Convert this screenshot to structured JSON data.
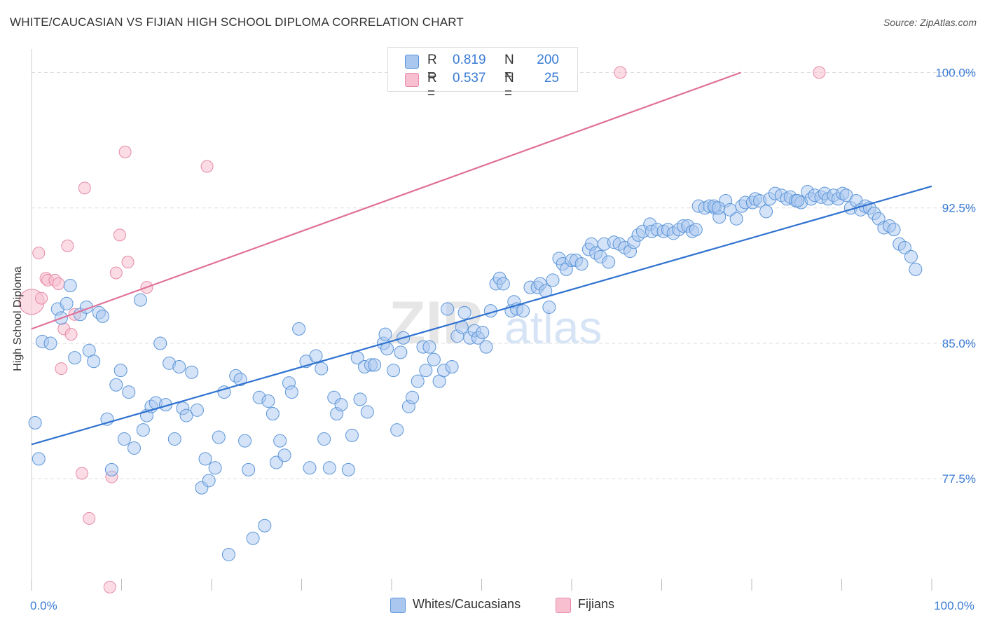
{
  "header": {
    "title": "WHITE/CAUCASIAN VS FIJIAN HIGH SCHOOL DIPLOMA CORRELATION CHART",
    "source": "Source: ZipAtlas.com"
  },
  "watermark": {
    "zip": "ZIP",
    "atlas": "atlas"
  },
  "legend_top": {
    "rows": [
      {
        "r_label": "R =",
        "r_value": "0.819",
        "n_label": "N =",
        "n_value": "200"
      },
      {
        "r_label": "R =",
        "r_value": "0.537",
        "n_label": "N =",
        "n_value": "25"
      }
    ]
  },
  "legend_bottom": {
    "items": [
      {
        "label": "Whites/Caucasians"
      },
      {
        "label": "Fijians"
      }
    ]
  },
  "colors": {
    "blue_fill": "#a9c7ef",
    "blue_stroke": "#5b95d9",
    "blue_line": "#2f72cf",
    "pink_fill": "#f7bfd0",
    "pink_stroke": "#e68aa8",
    "pink_line": "#e07098",
    "tick_label": "#3a7bd5",
    "grid": "#dddddd"
  },
  "chart_data": {
    "type": "scatter",
    "title": "WHITE/CAUCASIAN VS FIJIAN HIGH SCHOOL DIPLOMA CORRELATION CHART",
    "xlabel": "",
    "ylabel": "High School Diploma",
    "xlim": [
      0,
      100
    ],
    "ylim": [
      71.3,
      101.3
    ],
    "x_tick_labels": [
      {
        "value": 0,
        "label": "0.0%"
      },
      {
        "value": 100,
        "label": "100.0%"
      }
    ],
    "y_ticks": [
      {
        "value": 77.5,
        "label": "77.5%"
      },
      {
        "value": 85.0,
        "label": "85.0%"
      },
      {
        "value": 92.5,
        "label": "92.5%"
      },
      {
        "value": 100.0,
        "label": "100.0%"
      }
    ],
    "grid": true,
    "legend": "top-center",
    "series": [
      {
        "name": "Whites/Caucasians",
        "r": 0.819,
        "n": 200,
        "trend": {
          "x": [
            0,
            100
          ],
          "y": [
            79.4,
            93.7
          ]
        },
        "points": [
          [
            0.4,
            80.6
          ],
          [
            0.8,
            78.6
          ],
          [
            1.2,
            85.1
          ],
          [
            2.1,
            85.0
          ],
          [
            2.9,
            86.9
          ],
          [
            3.3,
            86.4
          ],
          [
            3.9,
            87.2
          ],
          [
            4.3,
            88.2
          ],
          [
            4.8,
            84.2
          ],
          [
            5.4,
            86.6
          ],
          [
            6.1,
            87.0
          ],
          [
            6.4,
            84.6
          ],
          [
            6.9,
            84.0
          ],
          [
            7.5,
            86.7
          ],
          [
            7.9,
            86.5
          ],
          [
            8.4,
            80.8
          ],
          [
            8.9,
            78.0
          ],
          [
            9.4,
            82.7
          ],
          [
            9.9,
            83.5
          ],
          [
            10.3,
            79.7
          ],
          [
            10.8,
            82.3
          ],
          [
            11.4,
            79.2
          ],
          [
            12.1,
            87.4
          ],
          [
            12.4,
            80.2
          ],
          [
            12.8,
            81.0
          ],
          [
            13.3,
            81.5
          ],
          [
            13.8,
            81.7
          ],
          [
            14.3,
            85.0
          ],
          [
            14.9,
            81.6
          ],
          [
            15.3,
            83.9
          ],
          [
            15.9,
            79.7
          ],
          [
            16.4,
            83.7
          ],
          [
            16.8,
            81.4
          ],
          [
            17.2,
            81.0
          ],
          [
            17.8,
            83.4
          ],
          [
            18.4,
            81.3
          ],
          [
            18.9,
            77.0
          ],
          [
            19.3,
            78.6
          ],
          [
            19.7,
            77.4
          ],
          [
            20.4,
            78.1
          ],
          [
            20.8,
            79.8
          ],
          [
            21.4,
            82.3
          ],
          [
            21.9,
            73.3
          ],
          [
            22.7,
            83.2
          ],
          [
            23.2,
            83.0
          ],
          [
            23.7,
            79.6
          ],
          [
            24.1,
            78.0
          ],
          [
            24.6,
            74.2
          ],
          [
            25.3,
            82.0
          ],
          [
            25.9,
            74.9
          ],
          [
            26.3,
            81.8
          ],
          [
            26.8,
            81.1
          ],
          [
            27.2,
            78.4
          ],
          [
            27.6,
            79.6
          ],
          [
            28.1,
            78.8
          ],
          [
            28.6,
            82.8
          ],
          [
            28.9,
            82.3
          ],
          [
            29.7,
            85.8
          ],
          [
            30.5,
            84.0
          ],
          [
            30.9,
            78.1
          ],
          [
            31.6,
            84.3
          ],
          [
            32.2,
            83.6
          ],
          [
            32.5,
            79.7
          ],
          [
            33.1,
            78.1
          ],
          [
            33.6,
            82.0
          ],
          [
            33.9,
            81.1
          ],
          [
            34.4,
            81.6
          ],
          [
            35.2,
            78.0
          ],
          [
            35.6,
            79.9
          ],
          [
            36.2,
            84.2
          ],
          [
            36.5,
            81.9
          ],
          [
            37.0,
            83.7
          ],
          [
            37.3,
            81.2
          ],
          [
            37.7,
            83.8
          ],
          [
            38.1,
            83.8
          ],
          [
            39.1,
            85.0
          ],
          [
            39.3,
            85.5
          ],
          [
            39.5,
            84.7
          ],
          [
            40.2,
            83.5
          ],
          [
            40.6,
            80.2
          ],
          [
            41.0,
            84.5
          ],
          [
            41.3,
            85.3
          ],
          [
            41.9,
            81.5
          ],
          [
            42.3,
            82.0
          ],
          [
            42.9,
            82.9
          ],
          [
            43.5,
            84.8
          ],
          [
            43.8,
            83.5
          ],
          [
            44.2,
            84.8
          ],
          [
            44.7,
            84.1
          ],
          [
            45.3,
            82.9
          ],
          [
            45.8,
            83.5
          ],
          [
            46.2,
            86.9
          ],
          [
            46.7,
            83.7
          ],
          [
            47.3,
            85.4
          ],
          [
            47.8,
            85.9
          ],
          [
            48.1,
            86.7
          ],
          [
            48.7,
            85.3
          ],
          [
            49.2,
            85.7
          ],
          [
            49.6,
            85.3
          ],
          [
            50.1,
            85.6
          ],
          [
            50.5,
            84.8
          ],
          [
            51.0,
            86.8
          ],
          [
            51.6,
            88.3
          ],
          [
            52.0,
            88.6
          ],
          [
            52.4,
            88.3
          ],
          [
            53.3,
            86.8
          ],
          [
            53.6,
            87.3
          ],
          [
            53.9,
            86.9
          ],
          [
            54.6,
            86.8
          ],
          [
            55.4,
            88.1
          ],
          [
            56.2,
            88.1
          ],
          [
            56.5,
            88.3
          ],
          [
            57.1,
            87.9
          ],
          [
            57.5,
            87.0
          ],
          [
            57.9,
            88.5
          ],
          [
            58.6,
            89.7
          ],
          [
            59.0,
            89.4
          ],
          [
            59.4,
            89.1
          ],
          [
            60.0,
            89.6
          ],
          [
            60.5,
            89.6
          ],
          [
            61.1,
            89.4
          ],
          [
            61.9,
            90.2
          ],
          [
            62.2,
            90.5
          ],
          [
            62.7,
            90.0
          ],
          [
            63.2,
            89.8
          ],
          [
            63.6,
            90.5
          ],
          [
            64.1,
            89.5
          ],
          [
            64.7,
            90.6
          ],
          [
            65.3,
            90.5
          ],
          [
            65.9,
            90.3
          ],
          [
            66.5,
            90.1
          ],
          [
            66.9,
            90.6
          ],
          [
            67.4,
            91.0
          ],
          [
            67.9,
            91.2
          ],
          [
            68.7,
            91.6
          ],
          [
            68.9,
            91.2
          ],
          [
            69.5,
            91.3
          ],
          [
            70.2,
            91.2
          ],
          [
            70.7,
            91.3
          ],
          [
            71.3,
            91.1
          ],
          [
            71.9,
            91.3
          ],
          [
            72.4,
            91.5
          ],
          [
            72.9,
            91.5
          ],
          [
            73.4,
            91.2
          ],
          [
            74.1,
            92.6
          ],
          [
            74.8,
            92.5
          ],
          [
            75.3,
            92.6
          ],
          [
            75.9,
            92.5
          ],
          [
            76.4,
            92.0
          ],
          [
            77.1,
            92.9
          ],
          [
            77.6,
            92.4
          ],
          [
            78.3,
            91.9
          ],
          [
            78.9,
            92.6
          ],
          [
            79.3,
            92.8
          ],
          [
            80.1,
            92.8
          ],
          [
            80.4,
            93.0
          ],
          [
            80.9,
            92.9
          ],
          [
            81.6,
            92.3
          ],
          [
            82.0,
            93.0
          ],
          [
            82.6,
            93.3
          ],
          [
            83.3,
            93.2
          ],
          [
            83.9,
            93.0
          ],
          [
            84.3,
            93.1
          ],
          [
            84.9,
            92.9
          ],
          [
            85.5,
            92.8
          ],
          [
            86.2,
            93.4
          ],
          [
            86.6,
            93.0
          ],
          [
            87.0,
            93.2
          ],
          [
            87.7,
            93.1
          ],
          [
            88.1,
            93.3
          ],
          [
            88.5,
            93.0
          ],
          [
            89.1,
            93.2
          ],
          [
            89.6,
            93.0
          ],
          [
            90.1,
            93.3
          ],
          [
            90.5,
            93.2
          ],
          [
            91.0,
            92.5
          ],
          [
            91.6,
            92.9
          ],
          [
            92.1,
            92.4
          ],
          [
            92.6,
            92.6
          ],
          [
            93.1,
            92.5
          ],
          [
            93.6,
            92.2
          ],
          [
            94.1,
            91.9
          ],
          [
            94.7,
            91.4
          ],
          [
            95.3,
            91.5
          ],
          [
            95.8,
            91.3
          ],
          [
            96.4,
            90.5
          ],
          [
            97.0,
            90.3
          ],
          [
            97.7,
            89.8
          ],
          [
            98.2,
            89.1
          ],
          [
            75.8,
            92.6
          ],
          [
            76.3,
            92.5
          ],
          [
            85.1,
            92.9
          ],
          [
            73.8,
            91.3
          ]
        ]
      },
      {
        "name": "Fijians",
        "r": 0.537,
        "n": 25,
        "trend": {
          "x": [
            0,
            78.8
          ],
          "y": [
            85.8,
            100.0
          ]
        },
        "points": [
          [
            0.0,
            87.3
          ],
          [
            0.8,
            90.0
          ],
          [
            1.1,
            87.5
          ],
          [
            1.6,
            88.6
          ],
          [
            1.8,
            88.5
          ],
          [
            2.6,
            88.5
          ],
          [
            3.0,
            88.3
          ],
          [
            3.3,
            83.6
          ],
          [
            3.6,
            85.8
          ],
          [
            4.0,
            90.4
          ],
          [
            4.4,
            85.5
          ],
          [
            4.8,
            86.6
          ],
          [
            5.6,
            77.8
          ],
          [
            5.9,
            93.6
          ],
          [
            6.4,
            75.3
          ],
          [
            8.7,
            71.5
          ],
          [
            8.9,
            77.6
          ],
          [
            9.4,
            88.9
          ],
          [
            9.8,
            91.0
          ],
          [
            10.4,
            95.6
          ],
          [
            10.7,
            89.5
          ],
          [
            12.8,
            88.1
          ],
          [
            19.5,
            94.8
          ],
          [
            65.4,
            100.0
          ],
          [
            87.5,
            100.0
          ]
        ]
      }
    ]
  }
}
